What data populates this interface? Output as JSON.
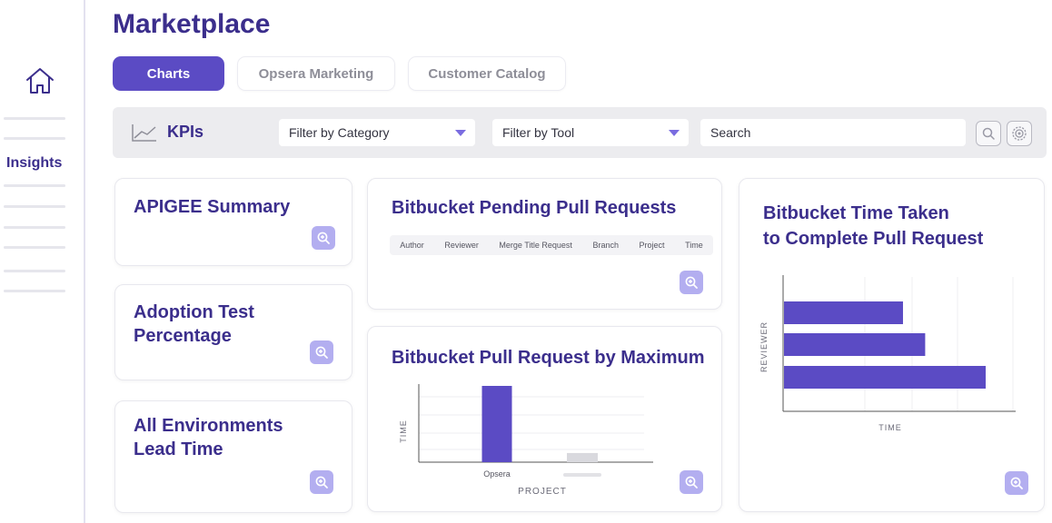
{
  "page": {
    "title": "Marketplace"
  },
  "sidebar": {
    "items": [
      {
        "label": "Insights"
      }
    ]
  },
  "tabs": [
    {
      "label": "Charts",
      "active": true
    },
    {
      "label": "Opsera Marketing",
      "active": false
    },
    {
      "label": "Customer Catalog",
      "active": false
    }
  ],
  "filters": {
    "kpi_label": "KPIs",
    "category": "Filter by Category",
    "tool": "Filter by Tool",
    "search_placeholder": "Search"
  },
  "cards": {
    "apigee": {
      "title": "APIGEE Summary"
    },
    "adoption": {
      "title_line1": "Adoption Test",
      "title_line2": "Percentage"
    },
    "environments": {
      "title_line1": "All Environments",
      "title_line2": "Lead Time"
    },
    "pending": {
      "title": "Bitbucket Pending Pull Requests",
      "columns": [
        "Author",
        "Reviewer",
        "Merge Title Request",
        "Branch",
        "Project",
        "Time"
      ]
    },
    "by_max": {
      "title": "Bitbucket Pull Request by Maximum"
    },
    "time_taken": {
      "title_line1": "Bitbucket Time Taken",
      "title_line2": "to Complete Pull Request"
    }
  },
  "colors": {
    "accent": "#5b4bc4",
    "title": "#3b2e8c",
    "zoom_bg": "#b3aef0",
    "bar_muted": "#d9d9de"
  },
  "chart_data": [
    {
      "type": "bar",
      "orientation": "vertical",
      "xlabel": "PROJECT",
      "ylabel": "TIME",
      "categories": [
        "Opsera",
        ""
      ],
      "values": [
        1.0,
        0.12
      ],
      "grid": true
    },
    {
      "type": "bar",
      "orientation": "horizontal",
      "xlabel": "TIME",
      "ylabel": "REVIEWER",
      "categories": [
        "",
        "",
        ""
      ],
      "values": [
        0.59,
        0.7,
        1.0
      ],
      "grid": true
    }
  ]
}
